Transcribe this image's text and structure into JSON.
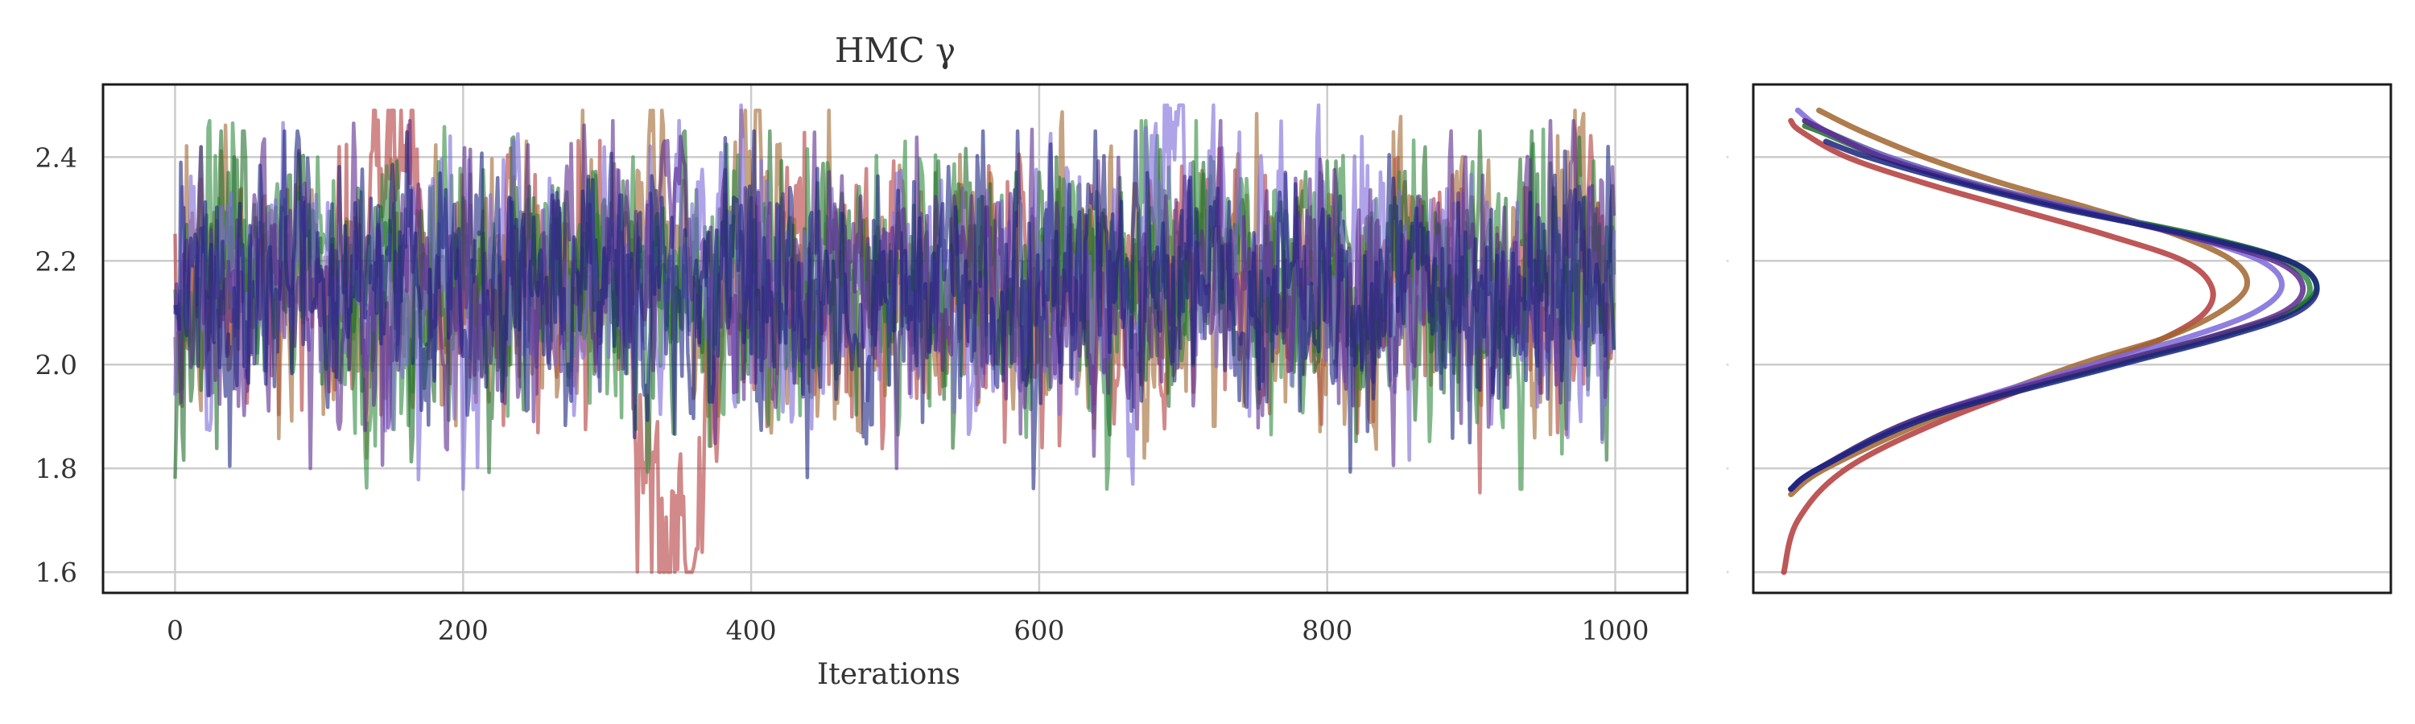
{
  "chart_data": [
    {
      "type": "line",
      "title": "HMC γ",
      "xlabel": "Iterations",
      "ylabel": "",
      "xlim": [
        -50,
        1050
      ],
      "ylim": [
        1.56,
        2.54
      ],
      "xticks": [
        0,
        200,
        400,
        600,
        800,
        1000
      ],
      "yticks": [
        1.6,
        1.8,
        2.0,
        2.2,
        2.4
      ],
      "xtick_labels": [
        "0",
        "200",
        "400",
        "600",
        "800",
        "1000"
      ],
      "ytick_labels": [
        "1.6",
        "1.8",
        "2.0",
        "2.2",
        "2.4"
      ],
      "grid": true,
      "n_iterations": 1000,
      "series": [
        {
          "color": "#b33a3a",
          "mean": 2.15,
          "min": 1.6,
          "max": 2.49
        },
        {
          "color": "#a0652e",
          "mean": 2.14,
          "min": 1.82,
          "max": 2.49
        },
        {
          "color": "#2e8b3e",
          "mean": 2.16,
          "min": 1.76,
          "max": 2.47
        },
        {
          "color": "#1f6e2a",
          "mean": 2.16,
          "min": 1.78,
          "max": 2.45
        },
        {
          "color": "#7b68d9",
          "mean": 2.15,
          "min": 1.76,
          "max": 2.5
        },
        {
          "color": "#5a2a8c",
          "mean": 2.15,
          "min": 1.8,
          "max": 2.47
        },
        {
          "color": "#1a237e",
          "mean": 2.15,
          "min": 1.76,
          "max": 2.45
        }
      ]
    },
    {
      "type": "line",
      "title": "",
      "xlabel": "",
      "ylabel": "",
      "ylim": [
        1.56,
        2.54
      ],
      "grid": true,
      "orientation": "horizontal-density",
      "series": [
        {
          "color": "#b33a3a",
          "y": [
            1.6,
            1.7,
            1.8,
            1.9,
            2.0,
            2.05,
            2.1,
            2.15,
            2.2,
            2.25,
            2.3,
            2.35,
            2.4,
            2.45,
            2.47
          ],
          "density": [
            0.0,
            0.1,
            0.45,
            1.2,
            2.2,
            2.7,
            3.0,
            3.05,
            2.85,
            2.3,
            1.65,
            1.0,
            0.45,
            0.12,
            0.05
          ]
        },
        {
          "color": "#a0652e",
          "y": [
            1.75,
            1.8,
            1.9,
            2.0,
            2.05,
            2.1,
            2.15,
            2.2,
            2.25,
            2.3,
            2.35,
            2.4,
            2.45,
            2.49
          ],
          "density": [
            0.05,
            0.3,
            1.1,
            2.1,
            2.7,
            3.1,
            3.3,
            3.2,
            2.8,
            2.2,
            1.55,
            1.0,
            0.55,
            0.25
          ]
        },
        {
          "color": "#2e8b3e",
          "y": [
            1.76,
            1.8,
            1.9,
            2.0,
            2.05,
            2.1,
            2.15,
            2.2,
            2.25,
            2.3,
            2.35,
            2.4,
            2.45,
            2.47
          ],
          "density": [
            0.05,
            0.25,
            1.0,
            2.3,
            3.0,
            3.6,
            3.75,
            3.55,
            2.9,
            2.1,
            1.35,
            0.75,
            0.3,
            0.15
          ]
        },
        {
          "color": "#1f6e2a",
          "y": [
            1.76,
            1.8,
            1.9,
            2.0,
            2.05,
            2.1,
            2.15,
            2.2,
            2.25,
            2.3,
            2.35,
            2.4,
            2.45,
            2.46
          ],
          "density": [
            0.05,
            0.25,
            1.0,
            2.35,
            3.05,
            3.6,
            3.8,
            3.6,
            2.95,
            2.05,
            1.3,
            0.7,
            0.25,
            0.15
          ]
        },
        {
          "color": "#7b68d9",
          "y": [
            1.76,
            1.8,
            1.9,
            2.0,
            2.05,
            2.1,
            2.15,
            2.2,
            2.25,
            2.3,
            2.35,
            2.4,
            2.45,
            2.49
          ],
          "density": [
            0.05,
            0.25,
            1.0,
            2.2,
            2.85,
            3.35,
            3.55,
            3.4,
            2.85,
            2.1,
            1.35,
            0.75,
            0.3,
            0.1
          ]
        },
        {
          "color": "#5a2a8c",
          "y": [
            1.76,
            1.8,
            1.9,
            2.0,
            2.05,
            2.1,
            2.15,
            2.2,
            2.25,
            2.3,
            2.35,
            2.4,
            2.45,
            2.47
          ],
          "density": [
            0.05,
            0.25,
            1.0,
            2.3,
            3.0,
            3.55,
            3.7,
            3.5,
            2.85,
            2.05,
            1.3,
            0.7,
            0.3,
            0.15
          ]
        },
        {
          "color": "#1a237e",
          "y": [
            1.76,
            1.8,
            1.9,
            2.0,
            2.05,
            2.1,
            2.15,
            2.2,
            2.25,
            2.3,
            2.35,
            2.4,
            2.43
          ],
          "density": [
            0.05,
            0.25,
            1.05,
            2.4,
            3.1,
            3.65,
            3.8,
            3.6,
            2.9,
            2.0,
            1.25,
            0.6,
            0.3
          ]
        }
      ]
    }
  ]
}
